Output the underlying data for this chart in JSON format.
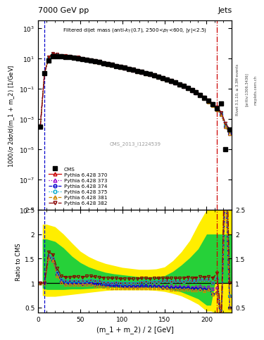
{
  "title_top": "7000 GeV pp",
  "title_right": "Jets",
  "plot_title": "Filtered dijet mass (anti-k_{T}(0.7), 2500<p_{T}<600, |y|<2.5)",
  "xlabel": "(m_1 + m_2) / 2 [GeV]",
  "ylabel_main": "1000/σ 2dσ/d(m_1 + m_2) [1/GeV]",
  "ylabel_ratio": "Ratio to CMS",
  "watermark": "CMS_2013_I1224539",
  "rivet_label": "Rivet 3.1.10, ≥ 3.3M events",
  "arxiv_label": "[arXiv:1306.3436]",
  "mcplots_label": "mcplots.cern.ch",
  "xlim": [
    0,
    230
  ],
  "ylim_main": [
    1e-09,
    3000.0
  ],
  "ylim_ratio": [
    0.4,
    2.5
  ],
  "vline1_x": 7.5,
  "vline2_x": 212.5,
  "x_data": [
    2.5,
    7.5,
    12.5,
    17.5,
    22.5,
    27.5,
    32.5,
    37.5,
    42.5,
    47.5,
    52.5,
    57.5,
    62.5,
    67.5,
    72.5,
    77.5,
    82.5,
    87.5,
    92.5,
    97.5,
    102.5,
    107.5,
    112.5,
    117.5,
    122.5,
    127.5,
    132.5,
    137.5,
    142.5,
    147.5,
    152.5,
    157.5,
    162.5,
    167.5,
    172.5,
    177.5,
    182.5,
    187.5,
    192.5,
    197.5,
    202.5,
    207.5,
    212.5,
    217.5,
    222.5,
    227.5
  ],
  "cms_y": [
    0.0003,
    1.0,
    7.0,
    13.0,
    13.5,
    13.0,
    12.5,
    12.0,
    11.0,
    10.0,
    9.0,
    8.0,
    7.0,
    6.2,
    5.4,
    4.7,
    4.1,
    3.6,
    3.1,
    2.7,
    2.35,
    2.02,
    1.73,
    1.47,
    1.25,
    1.05,
    0.88,
    0.73,
    0.6,
    0.49,
    0.39,
    0.31,
    0.245,
    0.19,
    0.145,
    0.108,
    0.079,
    0.056,
    0.038,
    0.025,
    0.015,
    0.009,
    0.005,
    0.01,
    1e-05,
    0.0002
  ],
  "py370_y": [
    0.0003,
    1.0,
    11.0,
    19.5,
    16.5,
    14.0,
    13.0,
    12.5,
    11.5,
    10.5,
    9.4,
    8.4,
    7.4,
    6.5,
    5.6,
    4.8,
    4.2,
    3.65,
    3.15,
    2.72,
    2.35,
    2.02,
    1.73,
    1.48,
    1.27,
    1.08,
    0.9,
    0.75,
    0.62,
    0.51,
    0.41,
    0.32,
    0.255,
    0.197,
    0.15,
    0.114,
    0.082,
    0.059,
    0.041,
    0.027,
    0.016,
    0.009,
    0.0055,
    0.0025,
    0.0004,
    0.00015
  ],
  "py373_y": [
    0.0003,
    1.0,
    10.5,
    19.0,
    16.0,
    13.5,
    12.6,
    12.1,
    11.1,
    10.1,
    9.0,
    8.1,
    7.1,
    6.2,
    5.35,
    4.6,
    4.0,
    3.48,
    3.0,
    2.58,
    2.23,
    1.92,
    1.64,
    1.4,
    1.19,
    1.01,
    0.84,
    0.7,
    0.57,
    0.46,
    0.37,
    0.29,
    0.23,
    0.178,
    0.135,
    0.102,
    0.073,
    0.052,
    0.036,
    0.023,
    0.014,
    0.008,
    0.0046,
    0.002,
    0.0003,
    0.0001
  ],
  "py374_y": [
    0.0003,
    1.0,
    10.5,
    19.0,
    16.0,
    13.5,
    12.5,
    12.0,
    11.0,
    10.0,
    8.9,
    8.0,
    7.0,
    6.1,
    5.25,
    4.5,
    3.92,
    3.4,
    2.93,
    2.53,
    2.18,
    1.88,
    1.61,
    1.37,
    1.17,
    0.99,
    0.82,
    0.68,
    0.56,
    0.45,
    0.36,
    0.28,
    0.223,
    0.172,
    0.13,
    0.098,
    0.07,
    0.05,
    0.034,
    0.022,
    0.013,
    0.007,
    0.004,
    0.0018,
    0.0003,
    0.0001
  ],
  "py375_y": [
    0.0003,
    1.0,
    11.0,
    19.5,
    16.5,
    14.0,
    13.0,
    12.5,
    11.5,
    10.5,
    9.4,
    8.4,
    7.4,
    6.5,
    5.6,
    4.8,
    4.2,
    3.65,
    3.15,
    2.72,
    2.35,
    2.02,
    1.73,
    1.48,
    1.27,
    1.08,
    0.9,
    0.75,
    0.62,
    0.51,
    0.41,
    0.32,
    0.255,
    0.197,
    0.15,
    0.114,
    0.082,
    0.059,
    0.041,
    0.027,
    0.016,
    0.009,
    0.0055,
    0.0025,
    0.0004,
    0.00015
  ],
  "py381_y": [
    0.0003,
    1.0,
    10.5,
    19.0,
    15.5,
    13.2,
    12.2,
    11.7,
    10.7,
    9.7,
    8.7,
    7.8,
    6.8,
    5.9,
    5.1,
    4.35,
    3.79,
    3.29,
    2.83,
    2.44,
    2.11,
    1.82,
    1.55,
    1.32,
    1.13,
    0.95,
    0.79,
    0.66,
    0.54,
    0.44,
    0.35,
    0.27,
    0.215,
    0.166,
    0.126,
    0.095,
    0.068,
    0.048,
    0.033,
    0.021,
    0.013,
    0.007,
    0.004,
    0.0018,
    0.0003,
    0.0001
  ],
  "py382_y": [
    0.0003,
    1.0,
    11.5,
    20.5,
    17.5,
    15.0,
    14.0,
    13.4,
    12.4,
    11.3,
    10.1,
    9.1,
    8.0,
    7.0,
    6.05,
    5.2,
    4.54,
    3.95,
    3.42,
    2.95,
    2.55,
    2.2,
    1.88,
    1.6,
    1.37,
    1.16,
    0.96,
    0.8,
    0.66,
    0.54,
    0.43,
    0.34,
    0.27,
    0.209,
    0.159,
    0.121,
    0.087,
    0.062,
    0.043,
    0.028,
    0.017,
    0.01,
    0.006,
    0.0025,
    0.0005,
    0.0002
  ],
  "ratio_370": [
    1.0,
    1.0,
    1.57,
    1.5,
    1.22,
    1.08,
    1.04,
    1.04,
    1.05,
    1.05,
    1.04,
    1.05,
    1.06,
    1.05,
    1.04,
    1.02,
    1.02,
    1.01,
    1.02,
    1.01,
    1.0,
    1.0,
    1.0,
    1.01,
    1.02,
    1.03,
    1.02,
    1.03,
    1.03,
    1.04,
    1.05,
    1.03,
    1.04,
    1.04,
    1.03,
    1.06,
    1.04,
    1.05,
    1.08,
    1.08,
    1.07,
    1.0,
    1.1,
    0.25,
    4.0,
    0.75
  ],
  "ratio_373": [
    1.0,
    1.0,
    1.5,
    1.46,
    1.19,
    1.04,
    1.01,
    1.01,
    1.01,
    1.01,
    1.0,
    1.01,
    1.01,
    1.0,
    0.99,
    0.98,
    0.98,
    0.97,
    0.97,
    0.96,
    0.95,
    0.95,
    0.95,
    0.95,
    0.95,
    0.96,
    0.95,
    0.96,
    0.95,
    0.94,
    0.95,
    0.94,
    0.94,
    0.94,
    0.93,
    0.94,
    0.92,
    0.93,
    0.95,
    0.92,
    0.93,
    0.89,
    0.92,
    0.2,
    3.0,
    0.5
  ],
  "ratio_374": [
    1.0,
    1.0,
    1.5,
    1.46,
    1.19,
    1.04,
    1.0,
    1.0,
    1.0,
    1.0,
    0.99,
    1.0,
    1.0,
    0.98,
    0.97,
    0.96,
    0.96,
    0.94,
    0.95,
    0.94,
    0.93,
    0.93,
    0.93,
    0.93,
    0.94,
    0.94,
    0.93,
    0.93,
    0.93,
    0.92,
    0.92,
    0.9,
    0.91,
    0.91,
    0.9,
    0.91,
    0.89,
    0.89,
    0.89,
    0.88,
    0.87,
    0.78,
    0.8,
    0.18,
    3.0,
    0.5
  ],
  "ratio_375": [
    1.0,
    1.0,
    1.57,
    1.5,
    1.22,
    1.08,
    1.04,
    1.04,
    1.05,
    1.05,
    1.04,
    1.05,
    1.06,
    1.05,
    1.04,
    1.02,
    1.02,
    1.01,
    1.02,
    1.01,
    1.0,
    1.0,
    1.0,
    1.01,
    1.02,
    1.03,
    1.02,
    1.03,
    1.03,
    1.04,
    1.05,
    1.03,
    1.04,
    1.04,
    1.03,
    1.06,
    1.04,
    1.05,
    1.08,
    1.08,
    1.07,
    1.0,
    1.1,
    0.25,
    4.0,
    0.75
  ],
  "ratio_381": [
    1.0,
    1.0,
    1.5,
    1.46,
    1.15,
    1.02,
    0.98,
    0.98,
    0.97,
    0.97,
    0.97,
    0.98,
    0.97,
    0.95,
    0.94,
    0.93,
    0.92,
    0.91,
    0.91,
    0.9,
    0.9,
    0.9,
    0.9,
    0.9,
    0.9,
    0.9,
    0.9,
    0.9,
    0.9,
    0.9,
    0.9,
    0.87,
    0.88,
    0.87,
    0.87,
    0.88,
    0.86,
    0.86,
    0.87,
    0.84,
    0.87,
    0.78,
    0.8,
    0.18,
    3.0,
    0.5
  ],
  "ratio_382": [
    1.0,
    1.0,
    1.64,
    1.58,
    1.3,
    1.15,
    1.12,
    1.12,
    1.13,
    1.13,
    1.12,
    1.14,
    1.14,
    1.13,
    1.12,
    1.11,
    1.11,
    1.1,
    1.1,
    1.09,
    1.09,
    1.09,
    1.09,
    1.09,
    1.1,
    1.1,
    1.09,
    1.1,
    1.1,
    1.1,
    1.1,
    1.1,
    1.1,
    1.1,
    1.1,
    1.12,
    1.1,
    1.11,
    1.13,
    1.12,
    1.13,
    1.11,
    1.2,
    0.25,
    4.5,
    1.0
  ],
  "band_x_green": [
    0,
    5,
    5,
    10,
    20,
    30,
    40,
    50,
    60,
    70,
    80,
    90,
    100,
    110,
    120,
    130,
    140,
    150,
    160,
    170,
    180,
    190,
    200,
    205,
    210,
    230
  ],
  "green_lo": [
    0.4,
    0.4,
    0.9,
    0.87,
    0.87,
    0.87,
    0.88,
    0.88,
    0.89,
    0.9,
    0.91,
    0.91,
    0.91,
    0.91,
    0.91,
    0.91,
    0.91,
    0.89,
    0.86,
    0.82,
    0.75,
    0.68,
    0.55,
    0.55,
    1.0,
    1.0
  ],
  "green_hi": [
    0.4,
    0.4,
    1.9,
    1.9,
    1.85,
    1.72,
    1.55,
    1.42,
    1.33,
    1.27,
    1.22,
    1.19,
    1.17,
    1.15,
    1.13,
    1.13,
    1.13,
    1.15,
    1.24,
    1.37,
    1.52,
    1.7,
    2.0,
    2.0,
    2.0,
    2.0
  ],
  "yellow_lo": [
    0.4,
    0.4,
    0.75,
    0.73,
    0.73,
    0.75,
    0.77,
    0.79,
    0.81,
    0.83,
    0.85,
    0.86,
    0.86,
    0.86,
    0.86,
    0.86,
    0.85,
    0.83,
    0.79,
    0.74,
    0.66,
    0.57,
    0.43,
    0.43,
    0.4,
    0.4
  ],
  "yellow_hi": [
    0.4,
    0.4,
    2.2,
    2.2,
    2.15,
    2.0,
    1.82,
    1.65,
    1.54,
    1.46,
    1.4,
    1.36,
    1.32,
    1.3,
    1.28,
    1.28,
    1.29,
    1.33,
    1.46,
    1.64,
    1.87,
    2.2,
    2.5,
    2.5,
    2.5,
    2.5
  ],
  "colors": {
    "cms": "#000000",
    "py370": "#cc0000",
    "py373": "#9900cc",
    "py374": "#0000cc",
    "py375": "#00aacc",
    "py381": "#cc8800",
    "py382": "#880000",
    "green_band": "#00cc44",
    "yellow_band": "#ffee00",
    "vline1": "#0000cc",
    "vline2": "#cc0000"
  }
}
